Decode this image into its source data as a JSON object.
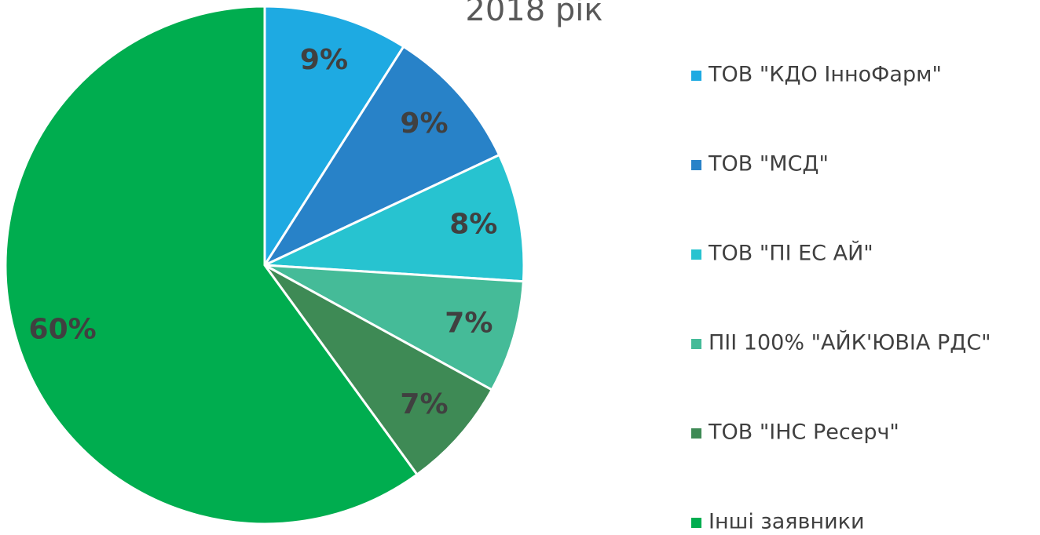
{
  "chart_data": {
    "type": "pie",
    "title": "2018 рік",
    "categories": [
      "ТОВ \"КДО ІнноФарм\"",
      "ТОВ \"МСД\"",
      "ТОВ \"ПІ ЕС АЙ\"",
      "ПІІ 100% \"АЙК'ЮВІА РДС\"",
      "ТОВ \"ІНС Ресерч\"",
      "Інші заявники"
    ],
    "values": [
      9,
      9,
      8,
      7,
      7,
      60
    ],
    "value_labels": [
      "9%",
      "9%",
      "8%",
      "7%",
      "7%",
      "60%"
    ],
    "colors": [
      "#1eaae2",
      "#2882c8",
      "#27c3d0",
      "#45bb98",
      "#3e8a55",
      "#00ad4f"
    ],
    "legend": "right"
  }
}
